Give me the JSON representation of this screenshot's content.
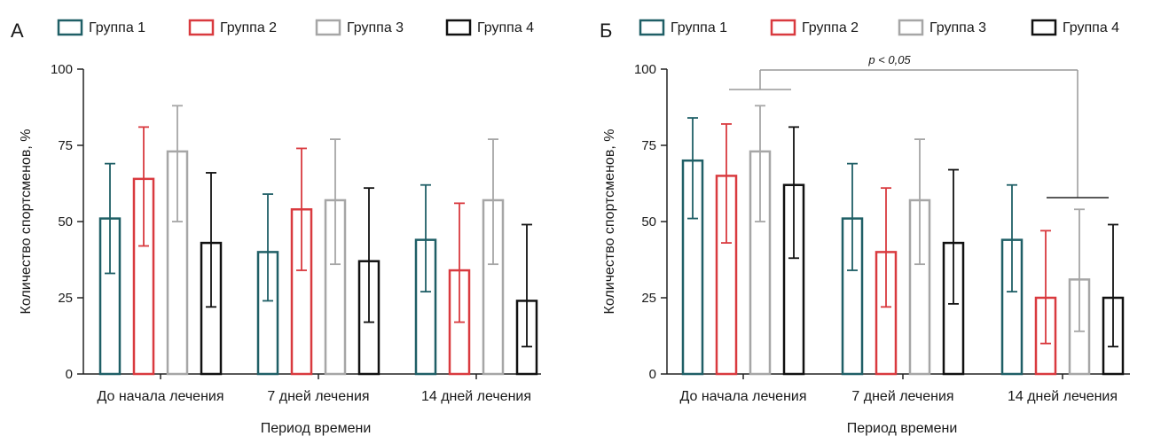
{
  "colors": {
    "Группа 1": "#1f5f66",
    "Группа 2": "#d93a3f",
    "Группа 3": "#a6a6a6",
    "Группа 4": "#111111"
  },
  "chart_data": [
    {
      "type": "bar",
      "panel_label": "А",
      "xlabel": "Период времени",
      "ylabel": "Количество спортсменов, %",
      "ylim": [
        0,
        100
      ],
      "yticks": [
        "0",
        "25",
        "50",
        "75",
        "100"
      ],
      "categories": [
        "До начала лечения",
        "7 дней лечения",
        "14 дней лечения"
      ],
      "legend_position": "top",
      "series": [
        {
          "name": "Группа 1",
          "values": [
            51,
            40,
            44
          ],
          "err_low": [
            33,
            24,
            27
          ],
          "err_high": [
            69,
            59,
            62
          ]
        },
        {
          "name": "Группа 2",
          "values": [
            64,
            54,
            34
          ],
          "err_low": [
            42,
            34,
            17
          ],
          "err_high": [
            81,
            74,
            56
          ]
        },
        {
          "name": "Группа 3",
          "values": [
            73,
            57,
            57
          ],
          "err_low": [
            50,
            36,
            36
          ],
          "err_high": [
            88,
            77,
            77
          ]
        },
        {
          "name": "Группа 4",
          "values": [
            43,
            37,
            24
          ],
          "err_low": [
            22,
            17,
            9
          ],
          "err_high": [
            66,
            61,
            49
          ]
        }
      ]
    },
    {
      "type": "bar",
      "panel_label": "Б",
      "xlabel": "Период времени",
      "ylabel": "Количество спортсменов, %",
      "ylim": [
        0,
        100
      ],
      "yticks": [
        "0",
        "25",
        "50",
        "75",
        "100"
      ],
      "categories": [
        "До начала лечения",
        "7 дней лечения",
        "14 дней лечения"
      ],
      "legend_position": "top",
      "annotation": "p < 0,05",
      "series": [
        {
          "name": "Группа 1",
          "values": [
            70,
            51,
            44
          ],
          "err_low": [
            51,
            34,
            27
          ],
          "err_high": [
            84,
            69,
            62
          ]
        },
        {
          "name": "Группа 2",
          "values": [
            65,
            40,
            25
          ],
          "err_low": [
            43,
            22,
            10
          ],
          "err_high": [
            82,
            61,
            47
          ]
        },
        {
          "name": "Группа 3",
          "values": [
            73,
            57,
            31
          ],
          "err_low": [
            50,
            36,
            14
          ],
          "err_high": [
            88,
            77,
            54
          ]
        },
        {
          "name": "Группа 4",
          "values": [
            62,
            43,
            25
          ],
          "err_low": [
            38,
            23,
            9
          ],
          "err_high": [
            81,
            67,
            49
          ]
        }
      ]
    }
  ]
}
